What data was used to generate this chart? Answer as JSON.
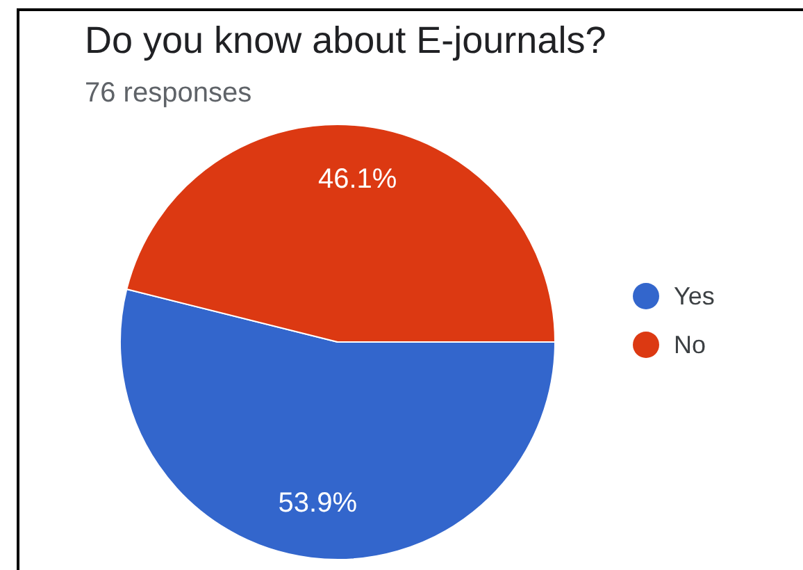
{
  "chart_data": {
    "type": "pie",
    "title": "Do you know about E-journals?",
    "subtitle": "76 responses",
    "categories": [
      "Yes",
      "No"
    ],
    "values": [
      53.9,
      46.1
    ],
    "colors": [
      "#3366cc",
      "#dc3912"
    ],
    "value_labels": [
      "53.9%",
      "46.1%"
    ],
    "legend": "right"
  }
}
